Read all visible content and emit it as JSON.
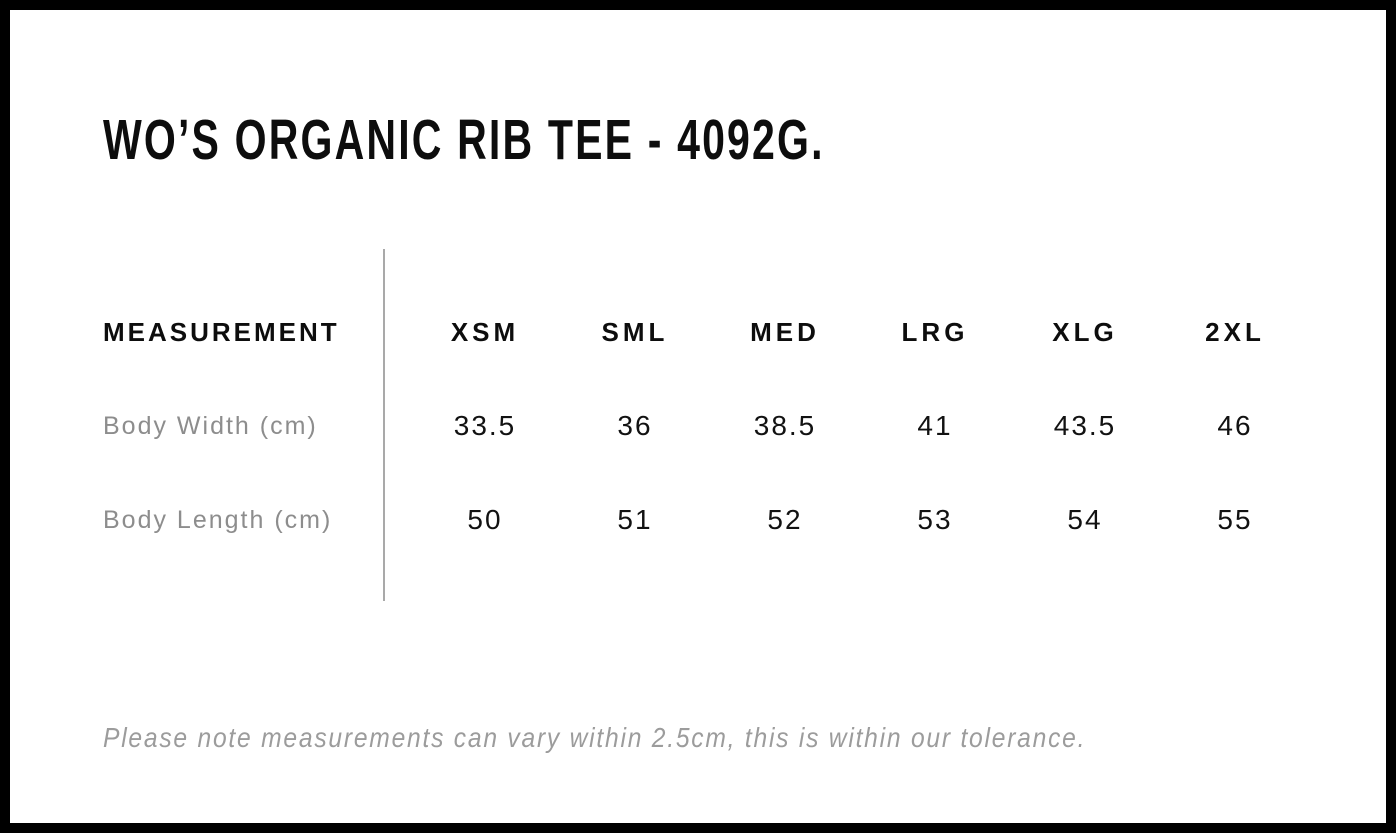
{
  "page": {
    "title": "WO’S ORGANIC RIB TEE - 4092G.",
    "footnote": "Please note measurements can vary within 2.5cm, this is within our tolerance."
  },
  "size_chart": {
    "measurement_header": "MEASUREMENT",
    "sizes": [
      "XSM",
      "SML",
      "MED",
      "LRG",
      "XLG",
      "2XL"
    ],
    "rows": [
      {
        "label": "Body Width (cm)",
        "values": [
          "33.5",
          "36",
          "38.5",
          "41",
          "43.5",
          "46"
        ]
      },
      {
        "label": "Body Length (cm)",
        "values": [
          "50",
          "51",
          "52",
          "53",
          "54",
          "55"
        ]
      }
    ]
  },
  "colors": {
    "text": "#0d0d0d",
    "muted_label": "#8d8d8d",
    "footnote": "#9c9c9c",
    "divider": "#a9a9a9",
    "frame_border": "#000000",
    "background": "#ffffff"
  }
}
